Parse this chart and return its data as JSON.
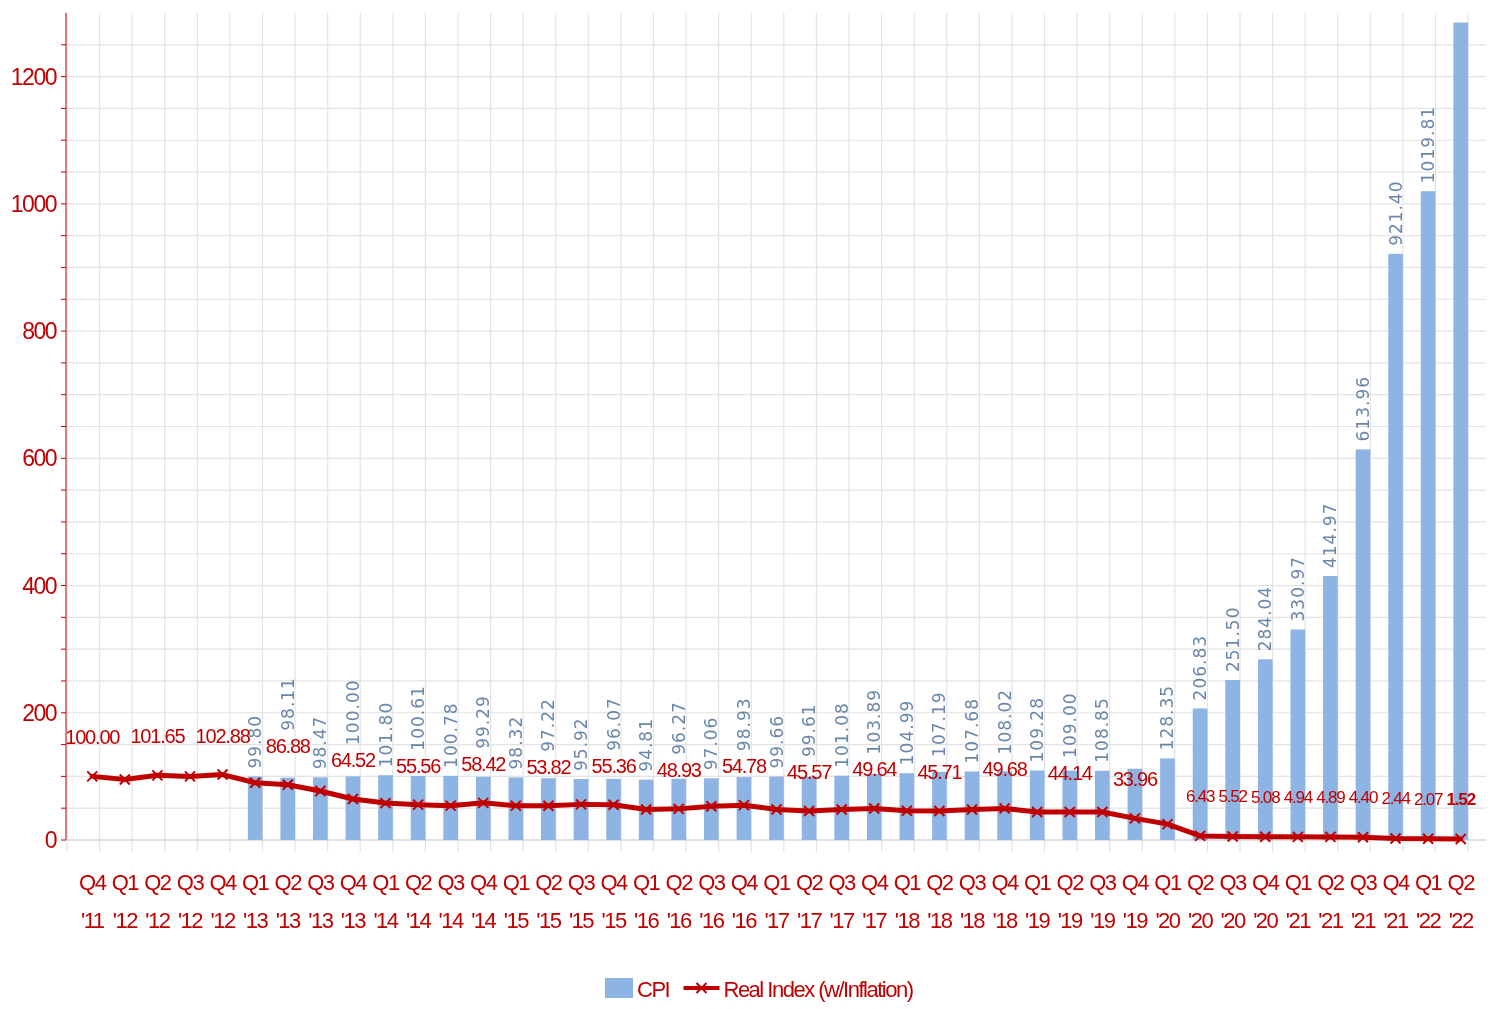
{
  "chart_data": {
    "type": "bar",
    "categories": [
      "Q4 '11",
      "Q1 '12",
      "Q2 '12",
      "Q3 '12",
      "Q4 '12",
      "Q1 '13",
      "Q2 '13",
      "Q3 '13",
      "Q4 '13",
      "Q1 '14",
      "Q2 '14",
      "Q3 '14",
      "Q4 '14",
      "Q1 '15",
      "Q2 '15",
      "Q3 '15",
      "Q4 '15",
      "Q1 '16",
      "Q2 '16",
      "Q3 '16",
      "Q4 '16",
      "Q1 '17",
      "Q2 '17",
      "Q3 '17",
      "Q4 '17",
      "Q1 '18",
      "Q2 '18",
      "Q3 '18",
      "Q4 '18",
      "Q1 '19",
      "Q2 '19",
      "Q3 '19",
      "Q4 '19",
      "Q1 '20",
      "Q2 '20",
      "Q3 '20",
      "Q4 '20",
      "Q1 '21",
      "Q2 '21",
      "Q3 '21",
      "Q4 '21",
      "Q1 '22",
      "Q2 '22"
    ],
    "series": [
      {
        "name": "CPI",
        "color": "#8db4e2",
        "values": [
          null,
          null,
          null,
          null,
          null,
          99.8,
          98.11,
          98.47,
          100.0,
          101.8,
          100.61,
          100.78,
          99.29,
          98.32,
          97.22,
          95.92,
          96.07,
          94.81,
          96.27,
          97.06,
          98.93,
          99.66,
          99.61,
          101.08,
          103.89,
          104.99,
          107.19,
          107.68,
          108.02,
          109.28,
          109.0,
          108.85,
          112,
          128.35,
          206.83,
          251.5,
          284.04,
          330.97,
          414.97,
          613.96,
          921.4,
          1019.81,
          1285
        ],
        "value_labels": [
          null,
          null,
          null,
          null,
          null,
          "99.80",
          "98.11",
          "98.47",
          "100.00",
          "101.80",
          "100.61",
          "100.78",
          "99.29",
          "98.32",
          "97.22",
          "95.92",
          "96.07",
          "94.81",
          "96.27",
          "97.06",
          "98.93",
          "99.66",
          "99.61",
          "101.08",
          "103.89",
          "104.99",
          "107.19",
          "107.68",
          "108.02",
          "109.28",
          "109.00",
          "108.85",
          null,
          "128.35",
          "206.83",
          "251.50",
          "284.04",
          "330.97",
          "414.97",
          "613.96",
          "921.40",
          "1019.81",
          null
        ]
      },
      {
        "name": "Real Index (w/Inflation)",
        "type": "line",
        "color": "#c00000",
        "marker": "cross",
        "line_style": "solid",
        "values": [
          100.0,
          95,
          101.65,
          100,
          102.88,
          90,
          86.88,
          77,
          64.52,
          58,
          55.56,
          54,
          58.42,
          54,
          53.82,
          56,
          55.36,
          48,
          48.93,
          53,
          54.78,
          48,
          45.57,
          48,
          49.64,
          46,
          45.71,
          48,
          49.68,
          44,
          44.14,
          44,
          33.96,
          25,
          6.43,
          5.52,
          5.08,
          4.94,
          4.89,
          4.4,
          2.44,
          2.07,
          1.52
        ],
        "value_labels": [
          "100.00",
          null,
          "101.65",
          null,
          "102.88",
          null,
          "86.88",
          null,
          "64.52",
          null,
          "55.56",
          null,
          "58.42",
          null,
          "53.82",
          null,
          "55.36",
          null,
          "48.93",
          null,
          "54.78",
          null,
          "45.57",
          null,
          "49.64",
          null,
          "45.71",
          null,
          "49.68",
          null,
          "44.14",
          null,
          "33.96",
          null,
          "6.43",
          "5.52",
          "5.08",
          "4.94",
          "4.89",
          "4.40",
          "2.44",
          "2.07",
          "1.52"
        ]
      }
    ],
    "ylim": [
      0,
      1300
    ],
    "yticks": [
      0,
      {
        "value": 50,
        "label": null
      },
      {
        "value": 100,
        "label": null
      },
      {
        "value": 150,
        "label": null
      },
      200,
      {
        "value": 250,
        "label": null
      },
      {
        "value": 300,
        "label": null
      },
      {
        "value": 350,
        "label": null
      },
      400,
      {
        "value": 450,
        "label": null
      },
      {
        "value": 500,
        "label": null
      },
      {
        "value": 550,
        "label": null
      },
      600,
      {
        "value": 650,
        "label": null
      },
      {
        "value": 700,
        "label": null
      },
      {
        "value": 750,
        "label": null
      },
      800,
      {
        "value": 850,
        "label": null
      },
      {
        "value": 900,
        "label": null
      },
      {
        "value": 950,
        "label": null
      },
      1000,
      {
        "value": 1050,
        "label": null
      },
      {
        "value": 1100,
        "label": null
      },
      {
        "value": 1150,
        "label": null
      },
      1200,
      {
        "value": 1250,
        "label": null
      }
    ],
    "grid": true,
    "legend": "bottom"
  }
}
